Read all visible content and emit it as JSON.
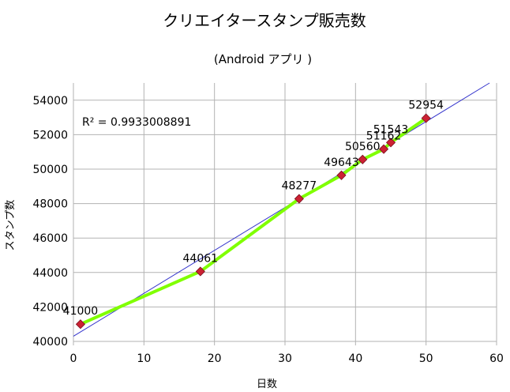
{
  "chart_data": {
    "type": "scatter",
    "title": "クリエイタースタンプ販売数",
    "subtitle": "(Android アプリ )",
    "xlabel": "日数",
    "ylabel": "スタンプ数",
    "xlim": [
      0,
      60
    ],
    "ylim": [
      40000,
      55000
    ],
    "xticks": [
      0,
      10,
      20,
      30,
      40,
      50,
      60
    ],
    "yticks": [
      40000,
      42000,
      44000,
      46000,
      48000,
      50000,
      52000,
      54000
    ],
    "grid": true,
    "series": [
      {
        "name": "スタンプ数",
        "points": [
          {
            "x": 1,
            "y": 41000,
            "label": "41000"
          },
          {
            "x": 18,
            "y": 44061,
            "label": "44061"
          },
          {
            "x": 32,
            "y": 48277,
            "label": "48277"
          },
          {
            "x": 38,
            "y": 49643,
            "label": "49643"
          },
          {
            "x": 41,
            "y": 50560,
            "label": "50560"
          },
          {
            "x": 44,
            "y": 51162,
            "label": "51162"
          },
          {
            "x": 45,
            "y": 51543,
            "label": "51543"
          },
          {
            "x": 50,
            "y": 52954,
            "label": "52954"
          }
        ]
      }
    ],
    "trendline": {
      "type": "linear",
      "r_squared_label": "R² = 0.9933008891",
      "start": {
        "x": 0,
        "y": 40300
      },
      "end": {
        "x": 59,
        "y": 55000
      }
    }
  },
  "colors": {
    "line": "#80ff00",
    "marker": "#cc2233",
    "trendline": "#3333cc",
    "grid": "#b3b3b3",
    "axis": "#b3b3b3"
  }
}
